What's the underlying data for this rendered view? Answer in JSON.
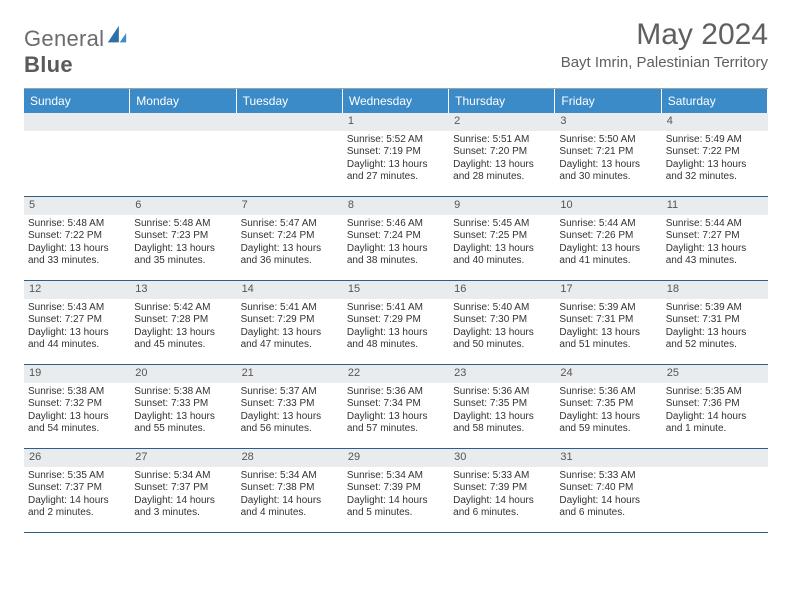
{
  "logo": {
    "text1": "General",
    "text2": "Blue"
  },
  "title": "May 2024",
  "location": "Bayt Imrin, Palestinian Territory",
  "colors": {
    "header_bg": "#3b8bc8",
    "header_text": "#ffffff",
    "daynum_bg": "#e9ecef",
    "border": "#2f5d8a",
    "text": "#333333",
    "title_text": "#5f5f5f"
  },
  "day_headers": [
    "Sunday",
    "Monday",
    "Tuesday",
    "Wednesday",
    "Thursday",
    "Friday",
    "Saturday"
  ],
  "weeks": [
    [
      {
        "empty": true
      },
      {
        "empty": true
      },
      {
        "empty": true
      },
      {
        "d": "1",
        "sr": "Sunrise: 5:52 AM",
        "ss": "Sunset: 7:19 PM",
        "dl1": "Daylight: 13 hours",
        "dl2": "and 27 minutes."
      },
      {
        "d": "2",
        "sr": "Sunrise: 5:51 AM",
        "ss": "Sunset: 7:20 PM",
        "dl1": "Daylight: 13 hours",
        "dl2": "and 28 minutes."
      },
      {
        "d": "3",
        "sr": "Sunrise: 5:50 AM",
        "ss": "Sunset: 7:21 PM",
        "dl1": "Daylight: 13 hours",
        "dl2": "and 30 minutes."
      },
      {
        "d": "4",
        "sr": "Sunrise: 5:49 AM",
        "ss": "Sunset: 7:22 PM",
        "dl1": "Daylight: 13 hours",
        "dl2": "and 32 minutes."
      }
    ],
    [
      {
        "d": "5",
        "sr": "Sunrise: 5:48 AM",
        "ss": "Sunset: 7:22 PM",
        "dl1": "Daylight: 13 hours",
        "dl2": "and 33 minutes."
      },
      {
        "d": "6",
        "sr": "Sunrise: 5:48 AM",
        "ss": "Sunset: 7:23 PM",
        "dl1": "Daylight: 13 hours",
        "dl2": "and 35 minutes."
      },
      {
        "d": "7",
        "sr": "Sunrise: 5:47 AM",
        "ss": "Sunset: 7:24 PM",
        "dl1": "Daylight: 13 hours",
        "dl2": "and 36 minutes."
      },
      {
        "d": "8",
        "sr": "Sunrise: 5:46 AM",
        "ss": "Sunset: 7:24 PM",
        "dl1": "Daylight: 13 hours",
        "dl2": "and 38 minutes."
      },
      {
        "d": "9",
        "sr": "Sunrise: 5:45 AM",
        "ss": "Sunset: 7:25 PM",
        "dl1": "Daylight: 13 hours",
        "dl2": "and 40 minutes."
      },
      {
        "d": "10",
        "sr": "Sunrise: 5:44 AM",
        "ss": "Sunset: 7:26 PM",
        "dl1": "Daylight: 13 hours",
        "dl2": "and 41 minutes."
      },
      {
        "d": "11",
        "sr": "Sunrise: 5:44 AM",
        "ss": "Sunset: 7:27 PM",
        "dl1": "Daylight: 13 hours",
        "dl2": "and 43 minutes."
      }
    ],
    [
      {
        "d": "12",
        "sr": "Sunrise: 5:43 AM",
        "ss": "Sunset: 7:27 PM",
        "dl1": "Daylight: 13 hours",
        "dl2": "and 44 minutes."
      },
      {
        "d": "13",
        "sr": "Sunrise: 5:42 AM",
        "ss": "Sunset: 7:28 PM",
        "dl1": "Daylight: 13 hours",
        "dl2": "and 45 minutes."
      },
      {
        "d": "14",
        "sr": "Sunrise: 5:41 AM",
        "ss": "Sunset: 7:29 PM",
        "dl1": "Daylight: 13 hours",
        "dl2": "and 47 minutes."
      },
      {
        "d": "15",
        "sr": "Sunrise: 5:41 AM",
        "ss": "Sunset: 7:29 PM",
        "dl1": "Daylight: 13 hours",
        "dl2": "and 48 minutes."
      },
      {
        "d": "16",
        "sr": "Sunrise: 5:40 AM",
        "ss": "Sunset: 7:30 PM",
        "dl1": "Daylight: 13 hours",
        "dl2": "and 50 minutes."
      },
      {
        "d": "17",
        "sr": "Sunrise: 5:39 AM",
        "ss": "Sunset: 7:31 PM",
        "dl1": "Daylight: 13 hours",
        "dl2": "and 51 minutes."
      },
      {
        "d": "18",
        "sr": "Sunrise: 5:39 AM",
        "ss": "Sunset: 7:31 PM",
        "dl1": "Daylight: 13 hours",
        "dl2": "and 52 minutes."
      }
    ],
    [
      {
        "d": "19",
        "sr": "Sunrise: 5:38 AM",
        "ss": "Sunset: 7:32 PM",
        "dl1": "Daylight: 13 hours",
        "dl2": "and 54 minutes."
      },
      {
        "d": "20",
        "sr": "Sunrise: 5:38 AM",
        "ss": "Sunset: 7:33 PM",
        "dl1": "Daylight: 13 hours",
        "dl2": "and 55 minutes."
      },
      {
        "d": "21",
        "sr": "Sunrise: 5:37 AM",
        "ss": "Sunset: 7:33 PM",
        "dl1": "Daylight: 13 hours",
        "dl2": "and 56 minutes."
      },
      {
        "d": "22",
        "sr": "Sunrise: 5:36 AM",
        "ss": "Sunset: 7:34 PM",
        "dl1": "Daylight: 13 hours",
        "dl2": "and 57 minutes."
      },
      {
        "d": "23",
        "sr": "Sunrise: 5:36 AM",
        "ss": "Sunset: 7:35 PM",
        "dl1": "Daylight: 13 hours",
        "dl2": "and 58 minutes."
      },
      {
        "d": "24",
        "sr": "Sunrise: 5:36 AM",
        "ss": "Sunset: 7:35 PM",
        "dl1": "Daylight: 13 hours",
        "dl2": "and 59 minutes."
      },
      {
        "d": "25",
        "sr": "Sunrise: 5:35 AM",
        "ss": "Sunset: 7:36 PM",
        "dl1": "Daylight: 14 hours",
        "dl2": "and 1 minute."
      }
    ],
    [
      {
        "d": "26",
        "sr": "Sunrise: 5:35 AM",
        "ss": "Sunset: 7:37 PM",
        "dl1": "Daylight: 14 hours",
        "dl2": "and 2 minutes."
      },
      {
        "d": "27",
        "sr": "Sunrise: 5:34 AM",
        "ss": "Sunset: 7:37 PM",
        "dl1": "Daylight: 14 hours",
        "dl2": "and 3 minutes."
      },
      {
        "d": "28",
        "sr": "Sunrise: 5:34 AM",
        "ss": "Sunset: 7:38 PM",
        "dl1": "Daylight: 14 hours",
        "dl2": "and 4 minutes."
      },
      {
        "d": "29",
        "sr": "Sunrise: 5:34 AM",
        "ss": "Sunset: 7:39 PM",
        "dl1": "Daylight: 14 hours",
        "dl2": "and 5 minutes."
      },
      {
        "d": "30",
        "sr": "Sunrise: 5:33 AM",
        "ss": "Sunset: 7:39 PM",
        "dl1": "Daylight: 14 hours",
        "dl2": "and 6 minutes."
      },
      {
        "d": "31",
        "sr": "Sunrise: 5:33 AM",
        "ss": "Sunset: 7:40 PM",
        "dl1": "Daylight: 14 hours",
        "dl2": "and 6 minutes."
      },
      {
        "empty": true
      }
    ]
  ]
}
